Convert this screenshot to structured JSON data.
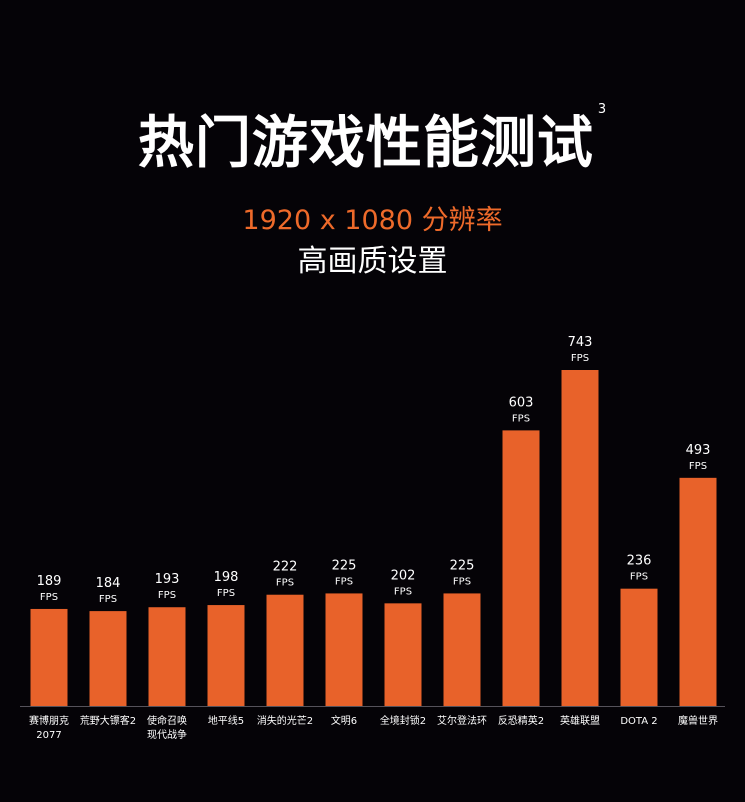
{
  "title": "热门游戏性能测试",
  "footnote": "3",
  "subtitle": "1920 x 1080 分辨率",
  "subtitle2": "高画质设置",
  "chart_data": {
    "type": "bar",
    "categories": [
      "赛博朋克\n2077",
      "荒野大镖客2",
      "使命召唤\n现代战争",
      "地平线5",
      "消失的光芒2",
      "文明6",
      "全境封锁2",
      "艾尔登法环",
      "反恐精英2",
      "英雄联盟",
      "DOTA 2",
      "魔兽世界"
    ],
    "values": [
      189,
      184,
      193,
      198,
      222,
      225,
      202,
      225,
      603,
      743,
      236,
      493
    ],
    "unit": "FPS",
    "bar_color": "#e8622a",
    "ylim": [
      -36,
      743
    ],
    "grid": false
  }
}
